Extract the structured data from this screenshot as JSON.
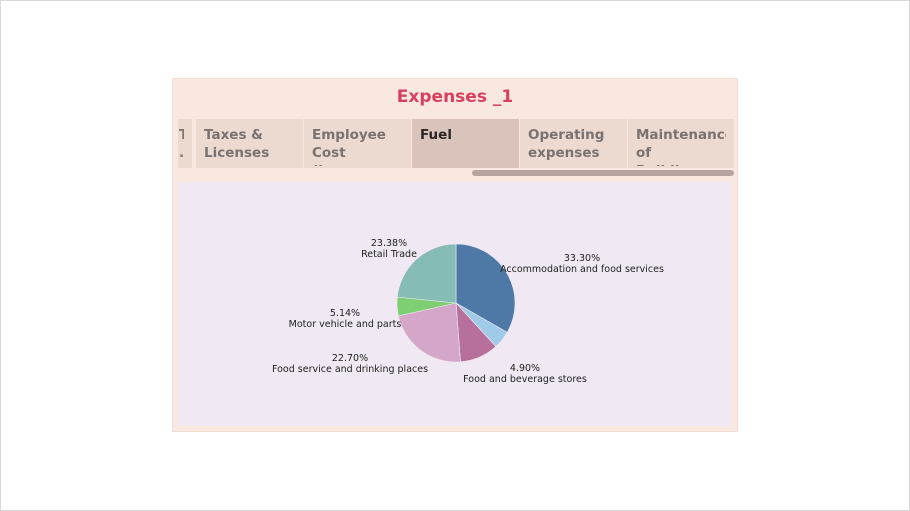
{
  "dashboard": {
    "title": "Expenses _1",
    "tabs": [
      {
        "label": "T\n.."
      },
      {
        "label": "Taxes &\nLicenses"
      },
      {
        "label": "Employee\nCost (Insura.."
      },
      {
        "label": "Fuel",
        "active": true
      },
      {
        "label": "Operating\nexpenses"
      },
      {
        "label": "Maintenance\nof Buildings"
      }
    ]
  },
  "colors": {
    "title": "#d8405f",
    "tab_bg": "#ecd9d0",
    "tab_active_bg": "#d9c3bb",
    "chart_bg": "#f0e8f2"
  },
  "chart_data": {
    "type": "pie",
    "slices": [
      {
        "label": "Accommodation and food services",
        "value": 33.3,
        "display": "33.30%",
        "color": "#4e79a7"
      },
      {
        "label": "Food and beverage stores",
        "value": 4.9,
        "display": "4.90%",
        "color": "#a0cbe8"
      },
      {
        "label": "Food service and drinking places",
        "value": 22.7,
        "display": "22.70%",
        "color": "#d4a6c8"
      },
      {
        "label": "Motor vehicle and parts",
        "value": 5.14,
        "display": "5.14%",
        "color": "#7ece74"
      },
      {
        "label": "Retail Trade",
        "value": 23.38,
        "display": "23.38%",
        "color": "#86bcb6"
      }
    ],
    "extra_slice_color": "#b6709b"
  }
}
